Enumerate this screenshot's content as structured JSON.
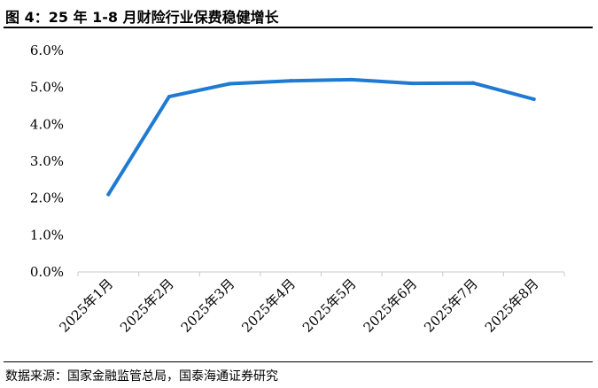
{
  "title": "图 4：25 年 1-8 月财险行业保费稳健增长",
  "source": "数据来源：国家金融监管总局，国泰海通证券研究",
  "chart_data": {
    "type": "line",
    "title": "",
    "xlabel": "",
    "ylabel": "",
    "categories": [
      "2025年1月",
      "2025年2月",
      "2025年3月",
      "2025年4月",
      "2025年5月",
      "2025年6月",
      "2025年7月",
      "2025年8月"
    ],
    "series": [
      {
        "values": [
          2.1,
          4.75,
          5.1,
          5.18,
          5.21,
          5.11,
          5.12,
          4.68
        ],
        "color": "#1f7ad1"
      }
    ],
    "ylim": [
      0,
      6
    ],
    "yticks": [
      "0.0%",
      "1.0%",
      "2.0%",
      "3.0%",
      "4.0%",
      "5.0%",
      "6.0%"
    ],
    "grid": false,
    "legend": "none"
  }
}
